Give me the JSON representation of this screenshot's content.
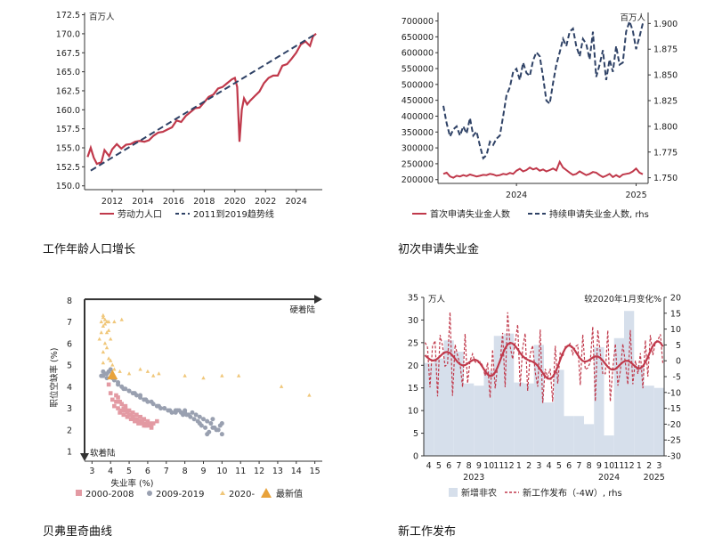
{
  "colors": {
    "red": "#c0394b",
    "navy": "#2f4266",
    "bar": "#d6dfeb",
    "pink": "#e39aa3",
    "gray": "#99a0b0",
    "gold": "#f0c77a",
    "orange": "#e8a23a"
  },
  "captions": [
    "工作年龄人口增长",
    "初次申请失业金",
    "贝弗里奇曲线",
    "新工作发布"
  ],
  "chart_data": [
    {
      "type": "line",
      "title": "工作年龄人口增长",
      "unit": "百万人",
      "xticks": [
        "2012",
        "2014",
        "2016",
        "2018",
        "2020",
        "2022",
        "2024"
      ],
      "yticks": [
        "172.5",
        "170.0",
        "167.5",
        "165.0",
        "162.5",
        "160.0",
        "157.5",
        "155.0",
        "152.5",
        "150.0"
      ],
      "xlim": [
        2010.2,
        2025.7
      ],
      "ylim": [
        149.5,
        172.8
      ],
      "series": [
        {
          "name": "劳动力人口",
          "color": "#c0394b",
          "x": [
            2010.4,
            2010.6,
            2010.8,
            2011.0,
            2011.3,
            2011.5,
            2011.8,
            2012.0,
            2012.3,
            2012.6,
            2012.9,
            2013.2,
            2013.5,
            2013.8,
            2014.1,
            2014.4,
            2014.7,
            2015.0,
            2015.3,
            2015.6,
            2015.9,
            2016.2,
            2016.5,
            2016.8,
            2017.1,
            2017.4,
            2017.7,
            2018.0,
            2018.3,
            2018.6,
            2018.9,
            2019.2,
            2019.5,
            2019.8,
            2020.0,
            2020.15,
            2020.3,
            2020.45,
            2020.6,
            2020.8,
            2021.0,
            2021.3,
            2021.6,
            2021.9,
            2022.2,
            2022.5,
            2022.8,
            2023.1,
            2023.4,
            2023.7,
            2024.0,
            2024.3,
            2024.6,
            2024.9,
            2025.1,
            2025.3
          ],
          "y": [
            153.8,
            155.0,
            153.7,
            152.9,
            153.1,
            154.7,
            153.9,
            154.8,
            155.5,
            154.9,
            155.4,
            155.5,
            155.8,
            155.9,
            155.8,
            156.0,
            156.6,
            157.0,
            157.1,
            157.4,
            157.7,
            158.6,
            158.4,
            159.2,
            159.7,
            160.2,
            160.3,
            161.0,
            161.7,
            162.0,
            162.8,
            163.0,
            163.5,
            164.0,
            164.2,
            163.0,
            155.8,
            160.0,
            161.5,
            160.7,
            161.2,
            161.8,
            162.4,
            163.5,
            164.2,
            164.5,
            164.5,
            165.8,
            166.0,
            166.7,
            167.5,
            168.6,
            169.0,
            168.4,
            169.7,
            170.0
          ]
        },
        {
          "name": "2011到2019趋势线",
          "color": "#2f4266",
          "dash": true,
          "x": [
            2010.6,
            2025.3
          ],
          "y": [
            152.0,
            170.0
          ]
        }
      ],
      "legend": [
        "劳动力人口",
        "2011到2019趋势线"
      ]
    },
    {
      "type": "line",
      "title": "初次申请失业金",
      "y_left_ticks": [
        "700000",
        "650000",
        "600000",
        "550000",
        "500000",
        "450000",
        "400000",
        "350000",
        "300000",
        "250000",
        "200000"
      ],
      "y_right_ticks": [
        "1.900",
        "1.875",
        "1.850",
        "1.825",
        "1.800",
        "1.775",
        "1.750"
      ],
      "y_right_unit": "百万人",
      "xticks": [
        "2024",
        "2025"
      ],
      "ylim_left": [
        188000,
        710000
      ],
      "ylim_right": [
        1.7445,
        1.9055
      ],
      "series": [
        {
          "name": "首次申请失业金人数",
          "color": "#c0394b",
          "axis": "left",
          "x": [
            0,
            2,
            4,
            6,
            8,
            10,
            12,
            14,
            16,
            18,
            20,
            22,
            24,
            26,
            28,
            30,
            32,
            34,
            36,
            38,
            40,
            42,
            44,
            46,
            48,
            50,
            52,
            54,
            56,
            58,
            60,
            62,
            64,
            66,
            68,
            70,
            72,
            74,
            76,
            78,
            80,
            82,
            84,
            86,
            88,
            90,
            92,
            94,
            96,
            98,
            100,
            102,
            104,
            106,
            108,
            110,
            112,
            114,
            116,
            118,
            120
          ],
          "y": [
            218000,
            222000,
            210000,
            206000,
            212000,
            210000,
            214000,
            211000,
            216000,
            213000,
            210000,
            212000,
            215000,
            214000,
            218000,
            216000,
            212000,
            214000,
            218000,
            216000,
            221000,
            218000,
            228000,
            234000,
            226000,
            230000,
            238000,
            232000,
            236000,
            228000,
            232000,
            226000,
            230000,
            235000,
            229000,
            256000,
            238000,
            230000,
            222000,
            215000,
            218000,
            226000,
            220000,
            214000,
            218000,
            224000,
            222000,
            214000,
            208000,
            212000,
            218000,
            208000,
            214000,
            208000,
            216000,
            218000,
            220000,
            226000,
            235000,
            222000,
            217000
          ]
        },
        {
          "name": "持续申请失业金人数",
          "color": "#2f4266",
          "axis": "right",
          "dash": true,
          "x": [
            0,
            2,
            4,
            6,
            8,
            10,
            12,
            14,
            16,
            18,
            20,
            22,
            24,
            26,
            28,
            30,
            32,
            34,
            36,
            38,
            40,
            42,
            44,
            46,
            48,
            50,
            52,
            54,
            56,
            58,
            60,
            62,
            64,
            66,
            68,
            70,
            72,
            74,
            76,
            78,
            80,
            82,
            84,
            86,
            88,
            90,
            92,
            94,
            96,
            98,
            100,
            102,
            104,
            106,
            108,
            110,
            112,
            114,
            116,
            118,
            120
          ],
          "y": [
            1.82,
            1.803,
            1.79,
            1.797,
            1.8,
            1.791,
            1.8,
            1.793,
            1.808,
            1.791,
            1.795,
            1.781,
            1.769,
            1.772,
            1.785,
            1.782,
            1.788,
            1.791,
            1.81,
            1.83,
            1.838,
            1.853,
            1.856,
            1.845,
            1.862,
            1.852,
            1.849,
            1.864,
            1.872,
            1.868,
            1.848,
            1.825,
            1.822,
            1.842,
            1.86,
            1.872,
            1.885,
            1.878,
            1.892,
            1.895,
            1.878,
            1.868,
            1.885,
            1.88,
            1.865,
            1.892,
            1.848,
            1.86,
            1.874,
            1.845,
            1.865,
            1.853,
            1.878,
            1.86,
            1.862,
            1.892,
            1.902,
            1.893,
            1.875,
            1.887,
            1.9
          ]
        }
      ],
      "legend": [
        "首次申请失业金人数",
        "持续申请失业金人数, rhs"
      ]
    },
    {
      "type": "scatter",
      "title": "贝弗里奇曲线",
      "xlabel": "失业率 (%)",
      "ylabel": "职位空缺率 (%)",
      "xlim": [
        2.6,
        15.4
      ],
      "ylim": [
        0.55,
        8.3
      ],
      "xticks": [
        "3",
        "4",
        "5",
        "6",
        "7",
        "8",
        "9",
        "10",
        "11",
        "12",
        "13",
        "14",
        "15"
      ],
      "yticks": [
        "8",
        "7",
        "6",
        "5",
        "4",
        "3",
        "2",
        "1"
      ],
      "annotations": [
        "硬着陆",
        "软着陆"
      ],
      "series": [
        {
          "name": "2000-2008",
          "color": "#e39aa3",
          "marker": "square",
          "x": [
            3.9,
            4.0,
            4.1,
            4.2,
            4.3,
            4.4,
            4.5,
            4.6,
            4.7,
            4.8,
            4.9,
            5.0,
            5.1,
            5.2,
            5.3,
            5.4,
            5.5,
            5.6,
            5.7,
            5.8,
            5.9,
            6.0,
            6.1,
            6.2,
            4.4,
            4.6,
            4.8,
            5.0,
            5.2,
            5.4,
            5.6,
            5.8,
            6.0,
            6.3,
            4.5,
            4.7,
            4.9,
            5.1,
            5.3,
            5.5,
            5.7,
            5.9,
            6.2,
            6.5,
            4.3,
            4.8,
            5.2,
            5.6
          ],
          "y": [
            4.1,
            3.7,
            3.4,
            3.1,
            3.3,
            3.0,
            2.8,
            2.9,
            2.7,
            3.0,
            2.6,
            2.7,
            2.5,
            2.6,
            2.4,
            2.5,
            2.3,
            2.4,
            2.3,
            2.2,
            2.3,
            2.2,
            2.3,
            2.1,
            3.5,
            3.2,
            3.1,
            2.9,
            2.8,
            2.7,
            2.6,
            2.5,
            2.4,
            2.3,
            3.3,
            3.0,
            2.8,
            2.7,
            2.5,
            2.4,
            2.4,
            2.2,
            2.2,
            2.4,
            3.6,
            2.9,
            2.6,
            2.6
          ]
        },
        {
          "name": "2009-2019",
          "color": "#99a0b0",
          "marker": "circle",
          "x": [
            3.5,
            3.6,
            3.7,
            3.8,
            3.9,
            4.0,
            4.1,
            4.2,
            4.4,
            4.6,
            4.8,
            5.0,
            5.2,
            5.4,
            5.6,
            5.8,
            6.0,
            6.3,
            6.6,
            6.9,
            7.2,
            7.5,
            7.8,
            8.0,
            8.2,
            8.4,
            8.6,
            8.8,
            9.0,
            9.2,
            9.4,
            9.6,
            9.8,
            10.0,
            9.9,
            9.7,
            9.5,
            9.3,
            9.1,
            8.9,
            8.7,
            8.5,
            8.3,
            8.1,
            7.9,
            7.7,
            7.5,
            7.3,
            7.1,
            6.9,
            6.7,
            6.5,
            6.2,
            5.9,
            5.6,
            5.3,
            5.0,
            4.7,
            4.4,
            4.1,
            3.8,
            3.6,
            10.0,
            9.5,
            9.2,
            8.8,
            8.0,
            7.6
          ],
          "y": [
            4.5,
            4.7,
            4.6,
            4.4,
            4.7,
            4.8,
            4.5,
            4.3,
            4.1,
            4.0,
            3.9,
            3.8,
            3.7,
            3.6,
            3.5,
            3.4,
            3.3,
            3.2,
            3.1,
            3.0,
            2.9,
            2.9,
            2.8,
            2.8,
            2.7,
            2.8,
            2.7,
            2.6,
            2.5,
            2.4,
            2.3,
            2.1,
            2.0,
            1.8,
            2.2,
            2.0,
            2.1,
            1.9,
            2.1,
            2.2,
            2.4,
            2.5,
            2.6,
            2.7,
            2.7,
            2.9,
            2.8,
            2.8,
            2.9,
            3.0,
            3.0,
            3.1,
            3.3,
            3.4,
            3.6,
            3.7,
            3.8,
            3.9,
            4.2,
            4.4,
            4.6,
            4.5,
            2.3,
            2.5,
            1.8,
            2.3,
            2.9,
            2.9
          ]
        },
        {
          "name": "2020-",
          "color": "#f0c77a",
          "marker": "triangle",
          "x": [
            3.5,
            3.6,
            3.6,
            3.7,
            3.7,
            3.8,
            3.9,
            3.5,
            3.4,
            3.7,
            3.8,
            3.6,
            3.9,
            4.0,
            4.1,
            3.6,
            4.2,
            4.5,
            5.0,
            5.6,
            6.0,
            6.3,
            6.6,
            8.0,
            9.0,
            10.0,
            10.9,
            13.2,
            14.7,
            3.9,
            4.2,
            4.6,
            3.6,
            3.8,
            4.0
          ],
          "y": [
            7.0,
            7.3,
            7.2,
            7.1,
            6.9,
            7.0,
            6.6,
            6.5,
            6.2,
            6.0,
            5.8,
            5.6,
            5.3,
            5.2,
            5.0,
            5.1,
            4.8,
            4.7,
            4.6,
            4.8,
            4.7,
            4.5,
            4.6,
            4.5,
            4.4,
            4.5,
            4.5,
            4.0,
            3.6,
            7.0,
            7.0,
            7.1,
            6.8,
            6.5,
            6.2
          ]
        },
        {
          "name": "最新值",
          "color": "#e8a23a",
          "marker": "triangle-big",
          "x": [
            4.1
          ],
          "y": [
            4.5
          ]
        }
      ],
      "legend": [
        "2000-2008",
        "2009-2019",
        "2020-",
        "最新值"
      ]
    },
    {
      "type": "bar",
      "title": "新工作发布",
      "y_left_unit": "万人",
      "y_right_unit": "较2020年1月变化%",
      "y_left_ticks": [
        "35",
        "30",
        "25",
        "20",
        "15",
        "10",
        "5",
        "0"
      ],
      "y_right_ticks": [
        "20",
        "15",
        "10",
        "5",
        "0",
        "-5",
        "-10",
        "-15",
        "-20",
        "-25",
        "-30"
      ],
      "categories": [
        "4",
        "5",
        "6",
        "7",
        "8",
        "9",
        "10",
        "11",
        "12",
        "1",
        "2",
        "3",
        "4",
        "5",
        "6",
        "7",
        "8",
        "9",
        "10",
        "11",
        "12",
        "1",
        "2",
        "3"
      ],
      "year_labels": [
        "2023",
        "2024",
        "2025"
      ],
      "ylim_left": [
        0,
        35
      ],
      "ylim_right": [
        -30,
        20
      ],
      "bars": [
        20.5,
        21.5,
        25.5,
        23.0,
        16.0,
        15.5,
        18.8,
        26.5,
        27.0,
        16.2,
        16.0,
        24.5,
        11.8,
        19.0,
        8.8,
        8.8,
        7.0,
        24.0,
        4.5,
        26.0,
        32.0,
        20.0,
        15.5,
        15.0
      ],
      "series": [
        {
          "name": "新增非农",
          "color": "#d6dfeb"
        },
        {
          "name": "新工作发布（-4W）, rhs",
          "color": "#c0394b",
          "dash": true
        },
        {
          "name": "smooth",
          "color": "#c0394b"
        }
      ],
      "legend": [
        "新增非农",
        "新工作发布（-4W）, rhs"
      ]
    }
  ]
}
